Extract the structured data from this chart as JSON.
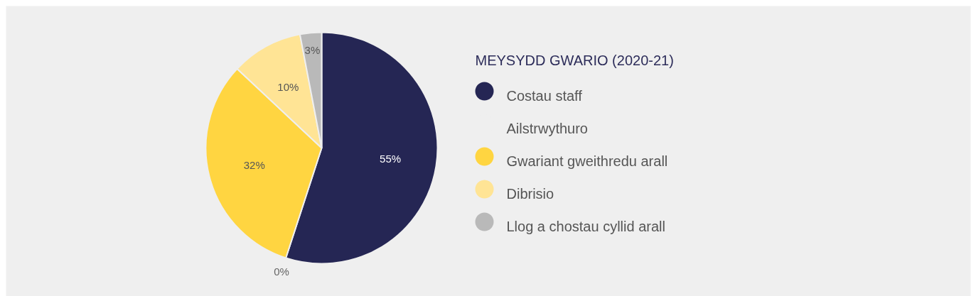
{
  "chart_data": {
    "type": "pie",
    "legend_title": "MEYSYDD GWARIO (2020-21)",
    "categories": [
      "Costau staff",
      "Ailstrwythuro",
      "Gwariant gweithredu arall",
      "Dibrisio",
      "Llog a chostau cyllid arall"
    ],
    "values": [
      55,
      0,
      32,
      10,
      3
    ],
    "value_labels": [
      "55%",
      "0%",
      "32%",
      "10%",
      "3%"
    ],
    "colors": [
      "#252654",
      "#efefef",
      "#ffd541",
      "#ffe495",
      "#b9b9b9"
    ],
    "legend": "right"
  }
}
